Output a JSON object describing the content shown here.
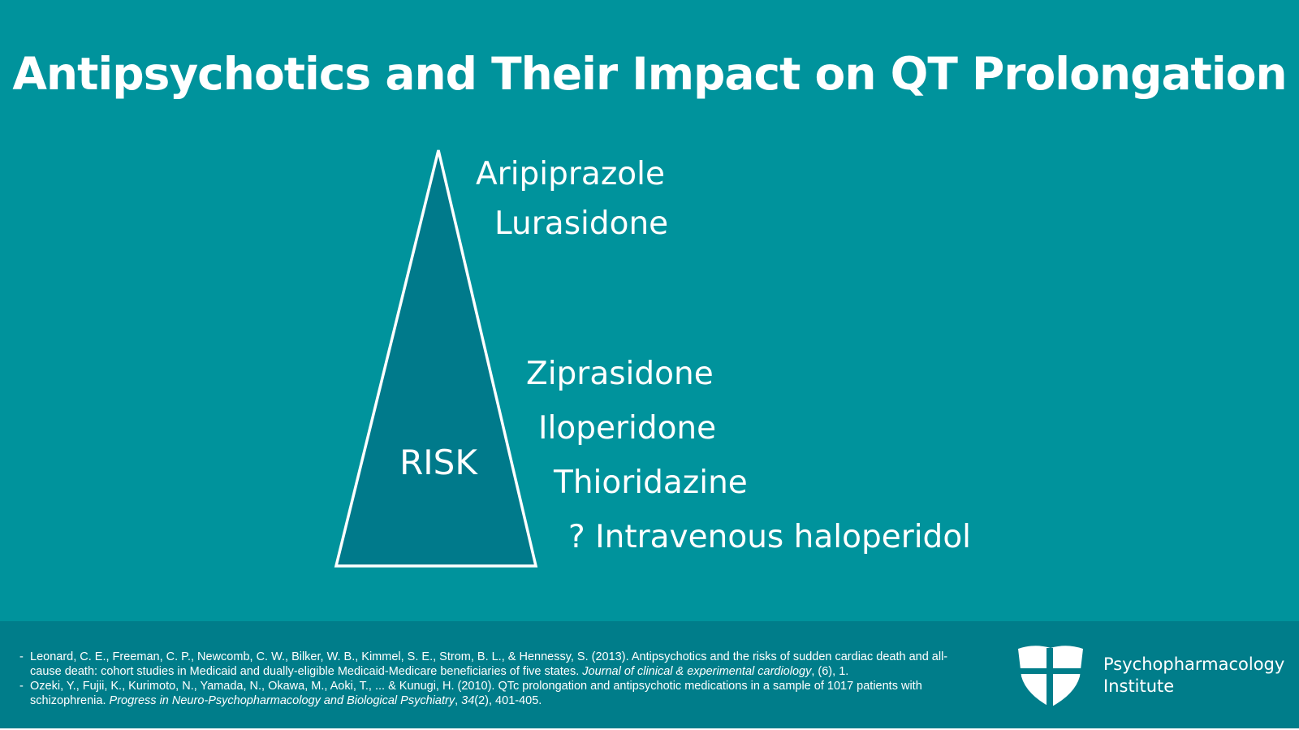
{
  "slide": {
    "title": "Antipsychotics and Their Impact on QT Prolongation",
    "pyramid": {
      "label": "RISK"
    },
    "drugs_low": [
      "Aripiprazole",
      "Lurasidone"
    ],
    "drugs_high": [
      "Ziprasidone",
      "Iloperidone",
      "Thioridazine",
      "? Intravenous haloperidol"
    ]
  },
  "references": [
    {
      "dash": "-",
      "text": "Leonard, C. E., Freeman, C. P., Newcomb, C. W., Bilker, W. B., Kimmel, S. E., Strom, B. L., & Hennessy, S. (2013). Antipsychotics and the risks of sudden cardiac death and all-cause death: cohort studies in Medicaid and dually-eligible Medicaid-Medicare beneficiaries of five states. ",
      "journal": "Journal of clinical & experimental cardiology",
      "tail": ", (6), 1."
    },
    {
      "dash": "-",
      "text": "Ozeki, Y., Fujii, K., Kurimoto, N., Yamada, N., Okawa, M., Aoki, T., ... & Kunugi, H. (2010). QTc prolongation and antipsychotic medications in a sample of 1017 patients with schizophrenia. ",
      "journal": "Progress in Neuro-Psychopharmacology and Biological Psychiatry",
      "sep": ", ",
      "volume": "34",
      "tail": "(2), 401-405."
    }
  ],
  "brand": {
    "line1": "Psychopharmacology",
    "line2": "Institute"
  },
  "colors": {
    "background": "#00939c",
    "pyramid_fill": "#007a8b",
    "footer": "#007d8a",
    "text": "#ffffff"
  }
}
